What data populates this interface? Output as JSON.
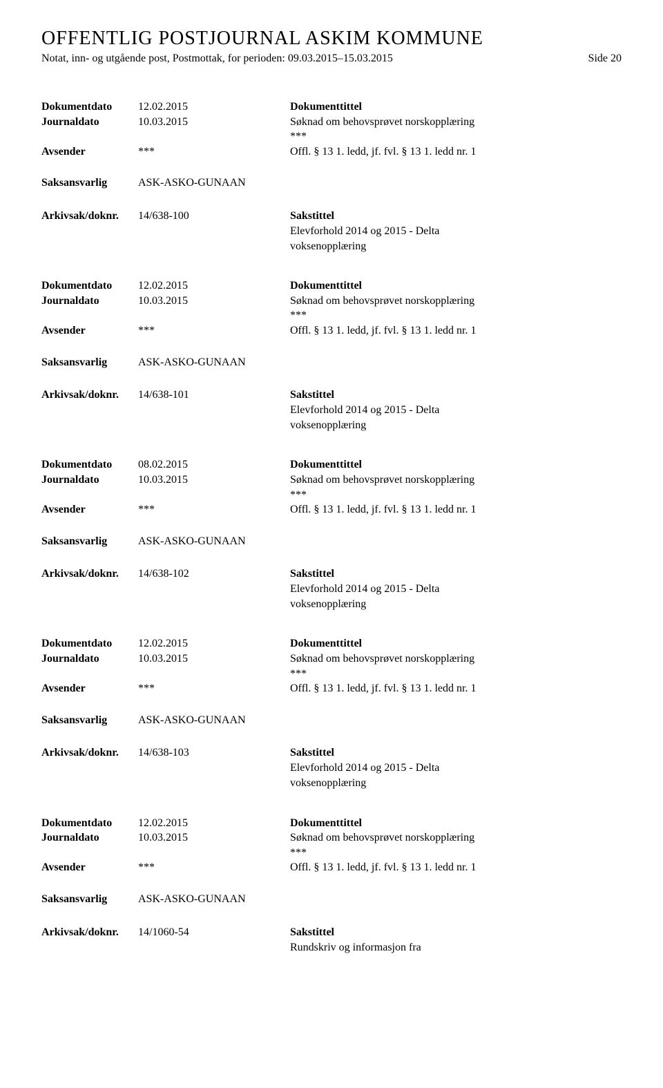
{
  "header": {
    "title": "OFFENTLIG POSTJOURNAL ASKIM KOMMUNE",
    "subtitle": "Notat, inn- og utgående post, Postmottak, for perioden: 09.03.2015–15.03.2015",
    "page": "Side 20"
  },
  "labels": {
    "dokumentdato": "Dokumentdato",
    "journaldato": "Journaldato",
    "dokumenttittel": "Dokumenttittel",
    "avsender": "Avsender",
    "saksansvarlig": "Saksansvarlig",
    "arkivsak": "Arkivsak/doknr.",
    "sakstittel": "Sakstittel"
  },
  "entries": [
    {
      "dokumentdato": "12.02.2015",
      "journaldato": "10.03.2015",
      "tittel_lines": [
        "Søknad om behovsprøvet norskopplæring",
        "***"
      ],
      "avsender": "***",
      "avsender_note": "Offl. § 13 1. ledd, jf. fvl. § 13 1. ledd nr. 1",
      "saksansvarlig": "ASK-ASKO-GUNAAN",
      "arkiv": "14/638-100",
      "arkiv_desc": [
        "Elevforhold 2014 og 2015 - Delta",
        "voksenopplæring"
      ]
    },
    {
      "dokumentdato": "12.02.2015",
      "journaldato": "10.03.2015",
      "tittel_lines": [
        "Søknad om behovsprøvet norskopplæring",
        "***"
      ],
      "avsender": "***",
      "avsender_note": "Offl. § 13 1. ledd, jf. fvl. § 13 1. ledd nr. 1",
      "saksansvarlig": "ASK-ASKO-GUNAAN",
      "arkiv": "14/638-101",
      "arkiv_desc": [
        "Elevforhold 2014 og 2015 - Delta",
        "voksenopplæring"
      ]
    },
    {
      "dokumentdato": "08.02.2015",
      "journaldato": "10.03.2015",
      "tittel_lines": [
        "Søknad om behovsprøvet norskopplæring",
        "***"
      ],
      "avsender": "***",
      "avsender_note": "Offl. § 13 1. ledd, jf. fvl. § 13 1. ledd nr. 1",
      "saksansvarlig": "ASK-ASKO-GUNAAN",
      "arkiv": "14/638-102",
      "arkiv_desc": [
        "Elevforhold 2014 og 2015 - Delta",
        "voksenopplæring"
      ]
    },
    {
      "dokumentdato": "12.02.2015",
      "journaldato": "10.03.2015",
      "tittel_lines": [
        "Søknad om behovsprøvet norskopplæring",
        "***"
      ],
      "avsender": "***",
      "avsender_note": "Offl. § 13 1. ledd, jf. fvl. § 13 1. ledd nr. 1",
      "saksansvarlig": "ASK-ASKO-GUNAAN",
      "arkiv": "14/638-103",
      "arkiv_desc": [
        "Elevforhold 2014 og 2015 - Delta",
        "voksenopplæring"
      ]
    },
    {
      "dokumentdato": "12.02.2015",
      "journaldato": "10.03.2015",
      "tittel_lines": [
        "Søknad om behovsprøvet norskopplæring",
        "***"
      ],
      "avsender": "***",
      "avsender_note": "Offl. § 13 1. ledd, jf. fvl. § 13 1. ledd nr. 1",
      "saksansvarlig": "ASK-ASKO-GUNAAN",
      "arkiv": "14/1060-54",
      "arkiv_desc": [
        "Rundskriv og informasjon fra"
      ]
    }
  ]
}
